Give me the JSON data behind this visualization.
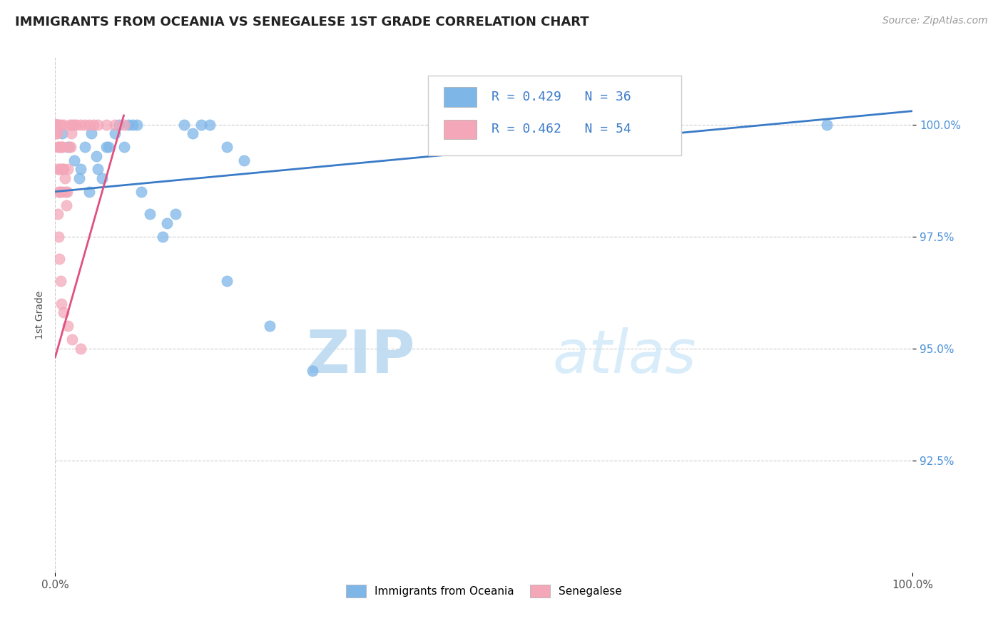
{
  "title": "IMMIGRANTS FROM OCEANIA VS SENEGALESE 1ST GRADE CORRELATION CHART",
  "source_text": "Source: ZipAtlas.com",
  "ylabel": "1st Grade",
  "watermark_zip": "ZIP",
  "watermark_atlas": "atlas",
  "legend_r1": "R = 0.429",
  "legend_n1": "N = 36",
  "legend_r2": "R = 0.462",
  "legend_n2": "N = 54",
  "legend_label1": "Immigrants from Oceania",
  "legend_label2": "Senegalese",
  "xmin": 0.0,
  "xmax": 100.0,
  "ymin": 90.0,
  "ymax": 101.5,
  "ytick_values": [
    92.5,
    95.0,
    97.5,
    100.0
  ],
  "color_blue": "#7EB6E8",
  "color_pink": "#F4A7B9",
  "color_pink_line": "#E05080",
  "trendline_color": "#3A7BC8",
  "grid_color": "#CCCCCC",
  "blue_scatter_x": [
    0.8,
    1.5,
    2.2,
    2.8,
    3.5,
    4.2,
    4.8,
    5.5,
    6.2,
    7.0,
    7.5,
    8.0,
    8.5,
    9.0,
    10.0,
    11.0,
    12.5,
    14.0,
    16.0,
    18.0,
    20.0,
    22.0,
    3.0,
    4.0,
    5.0,
    6.0,
    9.5,
    13.0,
    15.0,
    17.0,
    50.0,
    70.0,
    90.0,
    20.0,
    25.0,
    30.0
  ],
  "blue_scatter_y": [
    99.8,
    99.5,
    99.2,
    98.8,
    99.5,
    99.8,
    99.3,
    98.8,
    99.5,
    99.8,
    100.0,
    99.5,
    100.0,
    100.0,
    98.5,
    98.0,
    97.5,
    98.0,
    99.8,
    100.0,
    99.5,
    99.2,
    99.0,
    98.5,
    99.0,
    99.5,
    100.0,
    97.8,
    100.0,
    100.0,
    100.0,
    100.0,
    100.0,
    96.5,
    95.5,
    94.5
  ],
  "pink_scatter_x": [
    0.05,
    0.08,
    0.1,
    0.12,
    0.15,
    0.18,
    0.2,
    0.22,
    0.25,
    0.28,
    0.3,
    0.35,
    0.4,
    0.45,
    0.5,
    0.55,
    0.6,
    0.65,
    0.7,
    0.75,
    0.8,
    0.85,
    0.9,
    0.95,
    1.0,
    1.1,
    1.2,
    1.3,
    1.4,
    1.5,
    1.6,
    1.7,
    1.8,
    1.9,
    2.0,
    2.2,
    2.5,
    3.0,
    3.5,
    4.0,
    4.5,
    5.0,
    6.0,
    7.0,
    8.0,
    0.3,
    0.4,
    0.5,
    0.6,
    0.7,
    1.0,
    1.5,
    2.0,
    3.0
  ],
  "pink_scatter_y": [
    100.0,
    100.0,
    100.0,
    100.0,
    99.8,
    100.0,
    100.0,
    99.8,
    100.0,
    99.5,
    99.0,
    98.5,
    99.5,
    100.0,
    99.0,
    98.5,
    99.5,
    100.0,
    99.5,
    99.0,
    98.5,
    99.0,
    99.5,
    100.0,
    99.0,
    98.8,
    98.5,
    98.2,
    98.5,
    99.0,
    99.5,
    100.0,
    99.5,
    99.8,
    100.0,
    100.0,
    100.0,
    100.0,
    100.0,
    100.0,
    100.0,
    100.0,
    100.0,
    100.0,
    100.0,
    98.0,
    97.5,
    97.0,
    96.5,
    96.0,
    95.8,
    95.5,
    95.2,
    95.0
  ],
  "blue_trendline_x": [
    0.0,
    100.0
  ],
  "blue_trendline_y": [
    98.5,
    100.3
  ],
  "pink_trendline_x": [
    0.0,
    8.0
  ],
  "pink_trendline_y": [
    94.8,
    100.2
  ]
}
